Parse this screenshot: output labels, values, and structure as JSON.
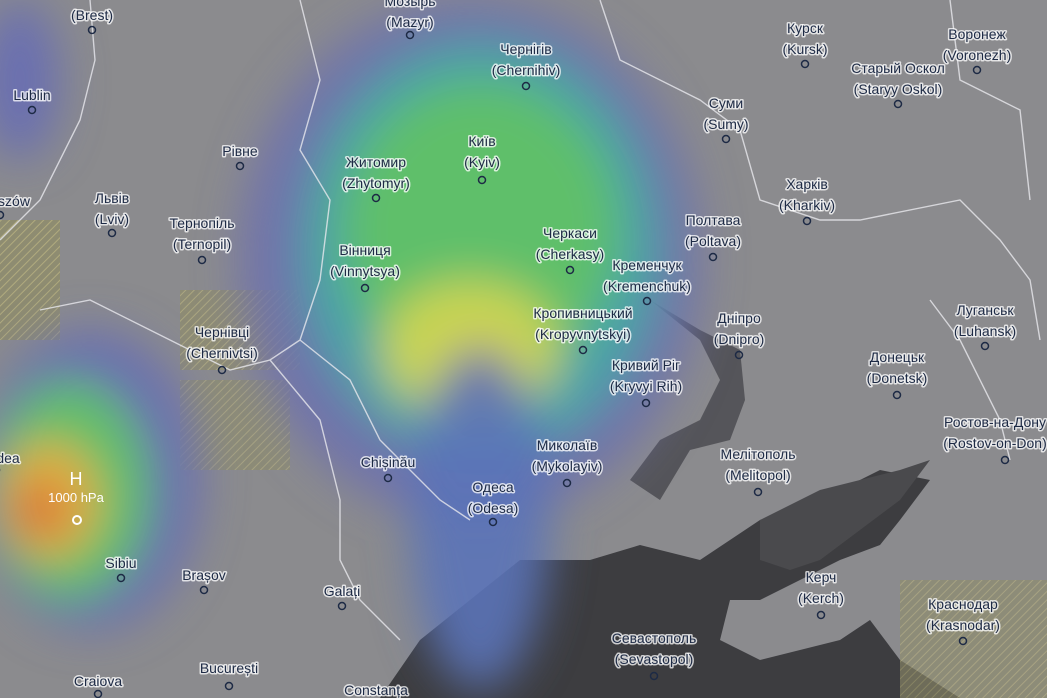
{
  "cities": [
    {
      "name": "Мозырь",
      "name_en": "(Mazyr)"
    },
    {
      "name": "(Brest)"
    },
    {
      "name": "Lublin"
    },
    {
      "name": "szów"
    },
    {
      "name": "Львів",
      "name_en": "(Lviv)"
    },
    {
      "name": "Тернопіль",
      "name_en": "(Ternopil)"
    },
    {
      "name": "Рівне"
    },
    {
      "name": "Житомир",
      "name_en": "(Zhytomyr)"
    },
    {
      "name": "Київ",
      "name_en": "(Kyiv)"
    },
    {
      "name": "Чернігів",
      "name_en": "(Chernihiv)"
    },
    {
      "name": "Суми",
      "name_en": "(Sumy)"
    },
    {
      "name": "Курск",
      "name_en": "(Kursk)"
    },
    {
      "name": "Старый Оскол",
      "name_en": "(Staryy Oskol)"
    },
    {
      "name": "Воронеж",
      "name_en": "(Voronezh)"
    },
    {
      "name": "Харків",
      "name_en": "(Kharkiv)"
    },
    {
      "name": "Полтава",
      "name_en": "(Poltava)"
    },
    {
      "name": "Черкаси",
      "name_en": "(Cherkasy)"
    },
    {
      "name": "Кременчук",
      "name_en": "(Kremenchuk)"
    },
    {
      "name": "Вінниця",
      "name_en": "(Vinnytsya)"
    },
    {
      "name": "Кропивницький",
      "name_en": "(Kropyvnytskyi)"
    },
    {
      "name": "Дніпро",
      "name_en": "(Dnipro)"
    },
    {
      "name": "Луганськ",
      "name_en": "(Luhansk)"
    },
    {
      "name": "Донецьк",
      "name_en": "(Donetsk)"
    },
    {
      "name": "Кривий Ріг",
      "name_en": "(Kryvyi Rih)"
    },
    {
      "name": "Чернівці",
      "name_en": "(Chernivtsi)"
    },
    {
      "name": "Chișinău"
    },
    {
      "name": "Миколаїв",
      "name_en": "(Mykolayiv)"
    },
    {
      "name": "Мелітополь",
      "name_en": "(Melitopol)"
    },
    {
      "name": "Ростов-на-Дону",
      "name_en": "(Rostov-on-Don)"
    },
    {
      "name": "Одеса",
      "name_en": "(Odesa)"
    },
    {
      "name": "dea"
    },
    {
      "name": "Sibiu"
    },
    {
      "name": "Brașov"
    },
    {
      "name": "Galați"
    },
    {
      "name": "Керч",
      "name_en": "(Kerch)"
    },
    {
      "name": "Краснодар",
      "name_en": "(Krasnodar)"
    },
    {
      "name": "Севастополь",
      "name_en": "(Sevastopol)"
    },
    {
      "name": "București"
    },
    {
      "name": "Craiova"
    },
    {
      "name": "Constanța"
    }
  ],
  "pressure": {
    "label": "H",
    "value": "1000 hPa"
  }
}
